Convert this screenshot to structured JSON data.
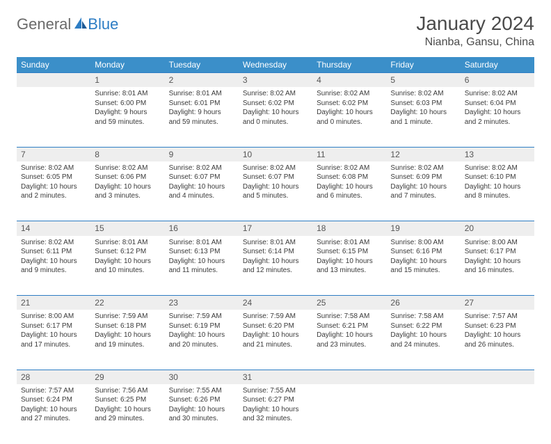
{
  "brand": {
    "part1": "General",
    "part2": "Blue"
  },
  "title": "January 2024",
  "location": "Nianba, Gansu, China",
  "weekdays": [
    "Sunday",
    "Monday",
    "Tuesday",
    "Wednesday",
    "Thursday",
    "Friday",
    "Saturday"
  ],
  "colors": {
    "header_bg": "#3b8fc9",
    "accent": "#2d7dc4",
    "daynum_bg": "#eeeeee",
    "text": "#3a3a3a",
    "title_text": "#4a4a4a",
    "logo_gray": "#6a6a6a"
  },
  "weeks": [
    [
      null,
      {
        "n": "1",
        "sr": "Sunrise: 8:01 AM",
        "ss": "Sunset: 6:00 PM",
        "dl": "Daylight: 9 hours and 59 minutes."
      },
      {
        "n": "2",
        "sr": "Sunrise: 8:01 AM",
        "ss": "Sunset: 6:01 PM",
        "dl": "Daylight: 9 hours and 59 minutes."
      },
      {
        "n": "3",
        "sr": "Sunrise: 8:02 AM",
        "ss": "Sunset: 6:02 PM",
        "dl": "Daylight: 10 hours and 0 minutes."
      },
      {
        "n": "4",
        "sr": "Sunrise: 8:02 AM",
        "ss": "Sunset: 6:02 PM",
        "dl": "Daylight: 10 hours and 0 minutes."
      },
      {
        "n": "5",
        "sr": "Sunrise: 8:02 AM",
        "ss": "Sunset: 6:03 PM",
        "dl": "Daylight: 10 hours and 1 minute."
      },
      {
        "n": "6",
        "sr": "Sunrise: 8:02 AM",
        "ss": "Sunset: 6:04 PM",
        "dl": "Daylight: 10 hours and 2 minutes."
      }
    ],
    [
      {
        "n": "7",
        "sr": "Sunrise: 8:02 AM",
        "ss": "Sunset: 6:05 PM",
        "dl": "Daylight: 10 hours and 2 minutes."
      },
      {
        "n": "8",
        "sr": "Sunrise: 8:02 AM",
        "ss": "Sunset: 6:06 PM",
        "dl": "Daylight: 10 hours and 3 minutes."
      },
      {
        "n": "9",
        "sr": "Sunrise: 8:02 AM",
        "ss": "Sunset: 6:07 PM",
        "dl": "Daylight: 10 hours and 4 minutes."
      },
      {
        "n": "10",
        "sr": "Sunrise: 8:02 AM",
        "ss": "Sunset: 6:07 PM",
        "dl": "Daylight: 10 hours and 5 minutes."
      },
      {
        "n": "11",
        "sr": "Sunrise: 8:02 AM",
        "ss": "Sunset: 6:08 PM",
        "dl": "Daylight: 10 hours and 6 minutes."
      },
      {
        "n": "12",
        "sr": "Sunrise: 8:02 AM",
        "ss": "Sunset: 6:09 PM",
        "dl": "Daylight: 10 hours and 7 minutes."
      },
      {
        "n": "13",
        "sr": "Sunrise: 8:02 AM",
        "ss": "Sunset: 6:10 PM",
        "dl": "Daylight: 10 hours and 8 minutes."
      }
    ],
    [
      {
        "n": "14",
        "sr": "Sunrise: 8:02 AM",
        "ss": "Sunset: 6:11 PM",
        "dl": "Daylight: 10 hours and 9 minutes."
      },
      {
        "n": "15",
        "sr": "Sunrise: 8:01 AM",
        "ss": "Sunset: 6:12 PM",
        "dl": "Daylight: 10 hours and 10 minutes."
      },
      {
        "n": "16",
        "sr": "Sunrise: 8:01 AM",
        "ss": "Sunset: 6:13 PM",
        "dl": "Daylight: 10 hours and 11 minutes."
      },
      {
        "n": "17",
        "sr": "Sunrise: 8:01 AM",
        "ss": "Sunset: 6:14 PM",
        "dl": "Daylight: 10 hours and 12 minutes."
      },
      {
        "n": "18",
        "sr": "Sunrise: 8:01 AM",
        "ss": "Sunset: 6:15 PM",
        "dl": "Daylight: 10 hours and 13 minutes."
      },
      {
        "n": "19",
        "sr": "Sunrise: 8:00 AM",
        "ss": "Sunset: 6:16 PM",
        "dl": "Daylight: 10 hours and 15 minutes."
      },
      {
        "n": "20",
        "sr": "Sunrise: 8:00 AM",
        "ss": "Sunset: 6:17 PM",
        "dl": "Daylight: 10 hours and 16 minutes."
      }
    ],
    [
      {
        "n": "21",
        "sr": "Sunrise: 8:00 AM",
        "ss": "Sunset: 6:17 PM",
        "dl": "Daylight: 10 hours and 17 minutes."
      },
      {
        "n": "22",
        "sr": "Sunrise: 7:59 AM",
        "ss": "Sunset: 6:18 PM",
        "dl": "Daylight: 10 hours and 19 minutes."
      },
      {
        "n": "23",
        "sr": "Sunrise: 7:59 AM",
        "ss": "Sunset: 6:19 PM",
        "dl": "Daylight: 10 hours and 20 minutes."
      },
      {
        "n": "24",
        "sr": "Sunrise: 7:59 AM",
        "ss": "Sunset: 6:20 PM",
        "dl": "Daylight: 10 hours and 21 minutes."
      },
      {
        "n": "25",
        "sr": "Sunrise: 7:58 AM",
        "ss": "Sunset: 6:21 PM",
        "dl": "Daylight: 10 hours and 23 minutes."
      },
      {
        "n": "26",
        "sr": "Sunrise: 7:58 AM",
        "ss": "Sunset: 6:22 PM",
        "dl": "Daylight: 10 hours and 24 minutes."
      },
      {
        "n": "27",
        "sr": "Sunrise: 7:57 AM",
        "ss": "Sunset: 6:23 PM",
        "dl": "Daylight: 10 hours and 26 minutes."
      }
    ],
    [
      {
        "n": "28",
        "sr": "Sunrise: 7:57 AM",
        "ss": "Sunset: 6:24 PM",
        "dl": "Daylight: 10 hours and 27 minutes."
      },
      {
        "n": "29",
        "sr": "Sunrise: 7:56 AM",
        "ss": "Sunset: 6:25 PM",
        "dl": "Daylight: 10 hours and 29 minutes."
      },
      {
        "n": "30",
        "sr": "Sunrise: 7:55 AM",
        "ss": "Sunset: 6:26 PM",
        "dl": "Daylight: 10 hours and 30 minutes."
      },
      {
        "n": "31",
        "sr": "Sunrise: 7:55 AM",
        "ss": "Sunset: 6:27 PM",
        "dl": "Daylight: 10 hours and 32 minutes."
      },
      null,
      null,
      null
    ]
  ]
}
